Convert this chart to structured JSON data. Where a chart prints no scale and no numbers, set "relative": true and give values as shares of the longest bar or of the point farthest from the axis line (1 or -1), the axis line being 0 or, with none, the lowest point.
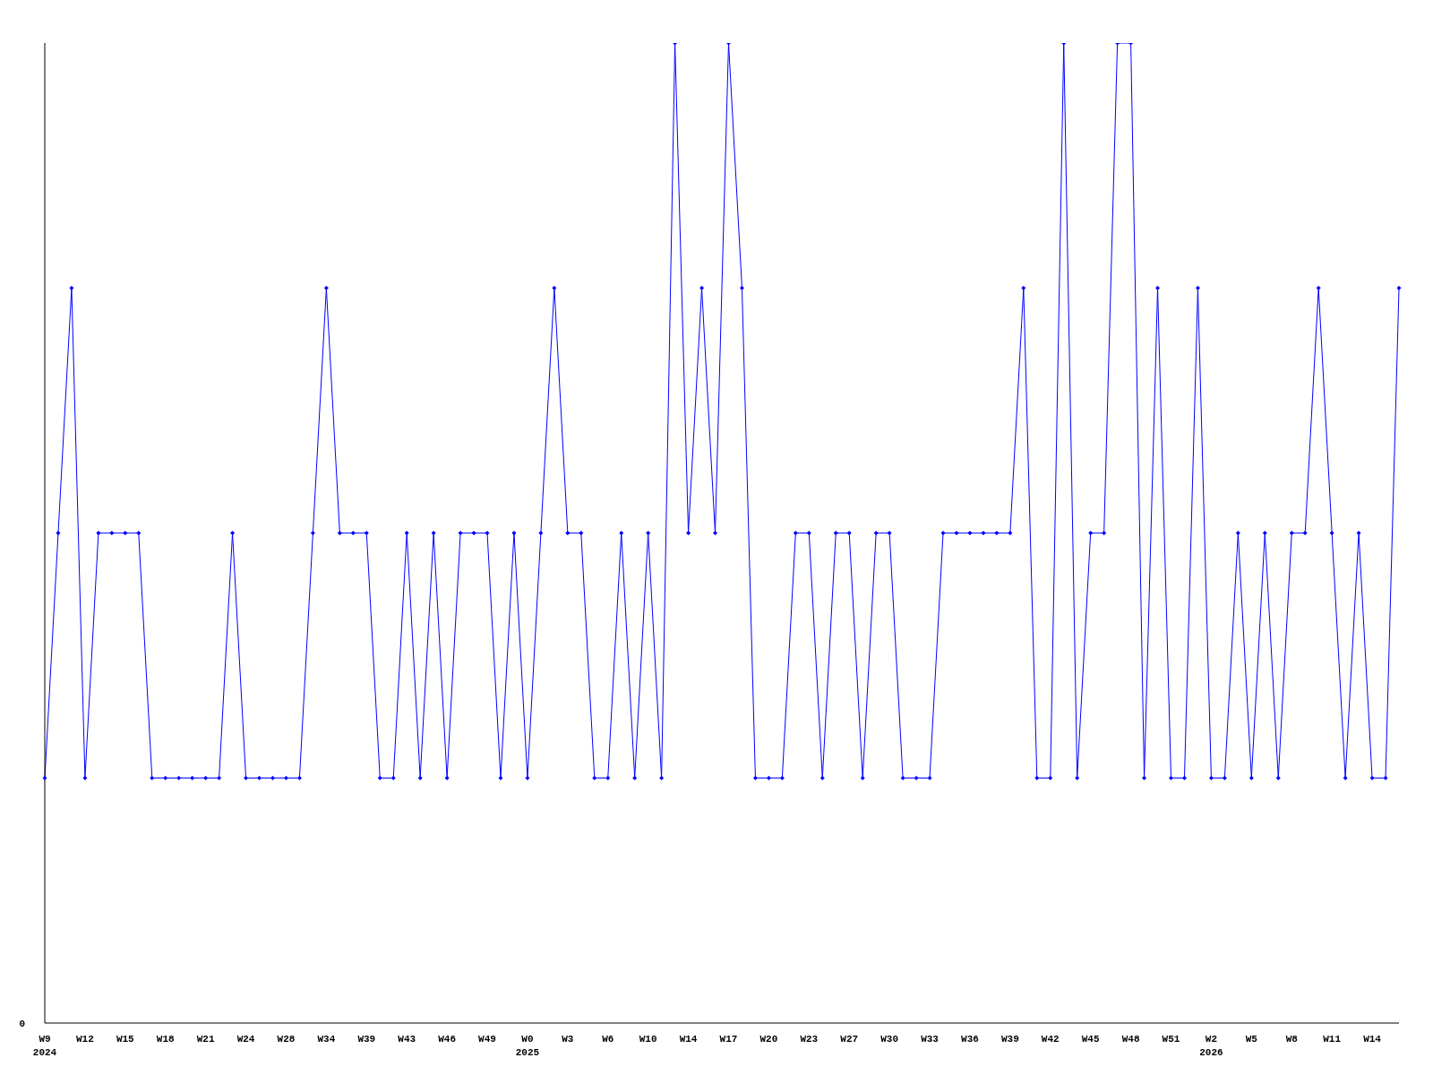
{
  "chart_data": {
    "type": "line",
    "relative": true,
    "categories": [
      "W9\n2024",
      null,
      null,
      "W12",
      null,
      null,
      "W15",
      null,
      null,
      "W18",
      null,
      null,
      "W21",
      null,
      null,
      "W24",
      null,
      null,
      "W28",
      null,
      null,
      "W34",
      null,
      null,
      "W39",
      null,
      null,
      "W43",
      null,
      null,
      "W46",
      null,
      null,
      "W49",
      null,
      null,
      "W0\n2025",
      null,
      null,
      "W3",
      null,
      null,
      "W6",
      null,
      null,
      "W10",
      null,
      null,
      "W14",
      null,
      null,
      "W17",
      null,
      null,
      "W20",
      null,
      null,
      "W23",
      null,
      null,
      "W27",
      null,
      null,
      "W30",
      null,
      null,
      "W33",
      null,
      null,
      "W36",
      null,
      null,
      "W39",
      null,
      null,
      "W42",
      null,
      null,
      "W45",
      null,
      null,
      "W48",
      null,
      null,
      "W51",
      null,
      null,
      "W2\n2026",
      null,
      null,
      "W5",
      null,
      null,
      "W8",
      null,
      null,
      "W11",
      null,
      null,
      "W14",
      null,
      null
    ],
    "series": [
      {
        "color": "#0000ff",
        "values": [
          0.25,
          0.5,
          0.75,
          0.25,
          0.5,
          0.5,
          0.5,
          0.5,
          0.25,
          0.25,
          0.25,
          0.25,
          0.25,
          0.25,
          0.5,
          0.25,
          0.25,
          0.25,
          0.25,
          0.25,
          0.5,
          0.75,
          0.5,
          0.5,
          0.5,
          0.25,
          0.25,
          0.5,
          0.25,
          0.5,
          0.25,
          0.5,
          0.5,
          0.5,
          0.25,
          0.5,
          0.25,
          0.5,
          0.75,
          0.5,
          0.5,
          0.25,
          0.25,
          0.5,
          0.25,
          0.5,
          0.25,
          1,
          0.5,
          0.75,
          0.5,
          1,
          0.75,
          0.25,
          0.25,
          0.25,
          0.5,
          0.5,
          0.25,
          0.5,
          0.5,
          0.25,
          0.5,
          0.5,
          0.25,
          0.25,
          0.25,
          0.5,
          0.5,
          0.5,
          0.5,
          0.5,
          0.5,
          0.75,
          0.25,
          0.25,
          1,
          0.25,
          0.5,
          0.5,
          1,
          1,
          0.25,
          0.75,
          0.25,
          0.25,
          0.75,
          0.25,
          0.25,
          0.5,
          0.25,
          0.5,
          0.25,
          0.5,
          0.5,
          0.75,
          0.5,
          0.25,
          0.5,
          0.25,
          0.25,
          0.75
        ]
      }
    ],
    "annotations": [
      "0"
    ],
    "marker": "diamond",
    "line_style": "solid",
    "grid": false,
    "legend": false
  }
}
